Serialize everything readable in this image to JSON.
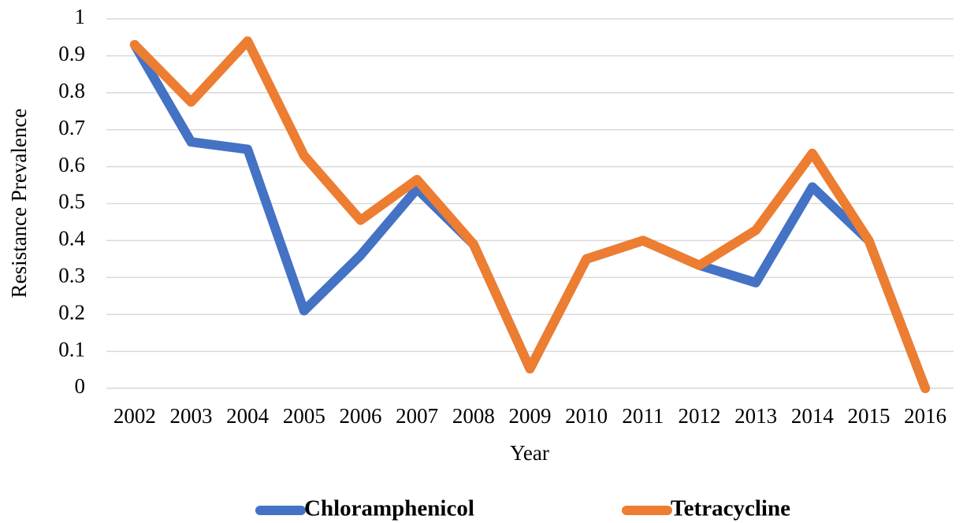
{
  "chart_data": {
    "type": "line",
    "x_label": "Year",
    "y_label": "Resistance Prevalence",
    "categories": [
      "2002",
      "2003",
      "2004",
      "2005",
      "2006",
      "2007",
      "2008",
      "2009",
      "2010",
      "2011",
      "2012",
      "2013",
      "2014",
      "2015",
      "2016"
    ],
    "series": [
      {
        "name": "Chloramphenicol",
        "color": "#4472c4",
        "values": [
          0.93,
          0.667,
          0.647,
          0.21,
          0.36,
          0.54,
          0.39,
          0.053,
          0.35,
          0.4,
          0.333,
          0.286,
          0.545,
          0.4,
          0
        ]
      },
      {
        "name": "Tetracycline",
        "color": "#ed7d31",
        "values": [
          0.93,
          0.775,
          0.94,
          0.63,
          0.455,
          0.565,
          0.39,
          0.053,
          0.35,
          0.4,
          0.333,
          0.428,
          0.636,
          0.4,
          0
        ]
      }
    ],
    "ylim": [
      0,
      1
    ],
    "yticks": [
      0,
      0.1,
      0.2,
      0.3,
      0.4,
      0.5,
      0.6,
      0.7,
      0.8,
      0.9,
      1
    ],
    "grid": true,
    "legend": "bottom"
  }
}
